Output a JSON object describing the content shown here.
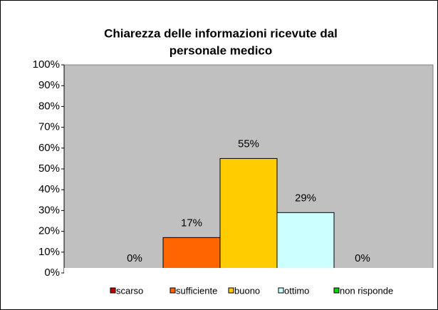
{
  "chart_data": {
    "type": "bar",
    "title": [
      "Chiarezza delle informazioni ricevute dal",
      "personale medico"
    ],
    "categories": [
      null
    ],
    "series": [
      {
        "name": "scarso",
        "color": "#c00000",
        "values": [
          0
        ],
        "value_labels": [
          "0%"
        ]
      },
      {
        "name": "sufficiente",
        "color": "#ff6600",
        "values": [
          17
        ],
        "value_labels": [
          "17%"
        ]
      },
      {
        "name": "buono",
        "color": "#ffcc00",
        "values": [
          55
        ],
        "value_labels": [
          "55%"
        ]
      },
      {
        "name": "ottimo",
        "color": "#ccffff",
        "values": [
          29
        ],
        "value_labels": [
          "29%"
        ]
      },
      {
        "name": "non risponde",
        "color": "#00cc00",
        "values": [
          0
        ],
        "value_labels": [
          "0%"
        ]
      }
    ],
    "ylim": [
      0,
      100
    ],
    "yticks": [
      {
        "value": 0,
        "label": "0%"
      },
      {
        "value": 10,
        "label": "10%"
      },
      {
        "value": 20,
        "label": "20%"
      },
      {
        "value": 30,
        "label": "30%"
      },
      {
        "value": 40,
        "label": "40%"
      },
      {
        "value": 50,
        "label": "50%"
      },
      {
        "value": 60,
        "label": "60%"
      },
      {
        "value": 70,
        "label": "70%"
      },
      {
        "value": 80,
        "label": "80%"
      },
      {
        "value": 90,
        "label": "90%"
      },
      {
        "value": 100,
        "label": "100%"
      }
    ],
    "grid": false,
    "legend": "bottom"
  }
}
